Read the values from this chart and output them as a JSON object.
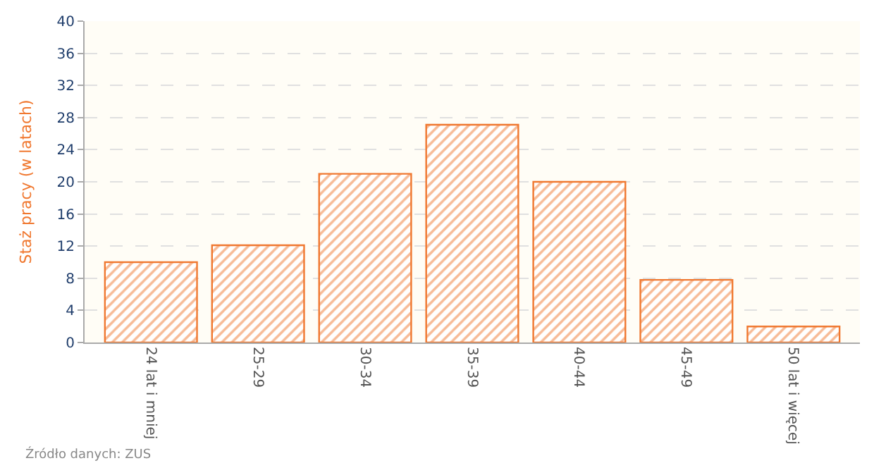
{
  "chart_data": {
    "type": "bar",
    "ylabel": "Staż pracy (w latach)",
    "categories": [
      "24 lat i mniej",
      "25-29",
      "30-34",
      "35-39",
      "40-44",
      "45-49",
      "50 lat i więcej"
    ],
    "values": [
      10,
      12.1,
      21,
      27.1,
      20,
      7.8,
      2
    ],
    "color": "#f07830",
    "ylim": [
      0,
      40
    ],
    "yticks": [
      0,
      4,
      8,
      12,
      16,
      20,
      24,
      28,
      32,
      36,
      40
    ],
    "grid": "y",
    "annotations": [
      "Źródło danych: ZUS"
    ]
  }
}
